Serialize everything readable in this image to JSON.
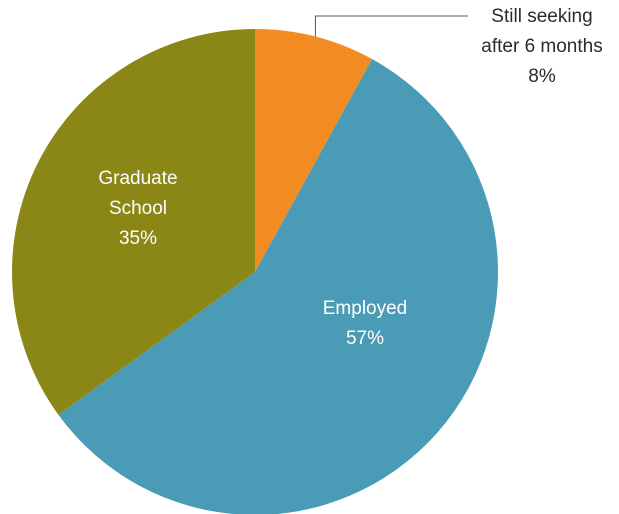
{
  "chart_data": {
    "type": "pie",
    "title": "",
    "start_angle_deg": 0,
    "direction": "clockwise",
    "slices": [
      {
        "key": "seeking",
        "label_lines": [
          "Still seeking",
          "after 6 months"
        ],
        "value_label": "8%",
        "value": 8,
        "color": "#f28c22",
        "label_placement": "outside-callout"
      },
      {
        "key": "employed",
        "label_lines": [
          "Employed"
        ],
        "value_label": "57%",
        "value": 57,
        "color": "#4a9bb5",
        "label_placement": "inside"
      },
      {
        "key": "graduate",
        "label_lines": [
          "Graduate",
          "School"
        ],
        "value_label": "35%",
        "value": 35,
        "color": "#8b8716",
        "label_placement": "inside"
      }
    ]
  }
}
